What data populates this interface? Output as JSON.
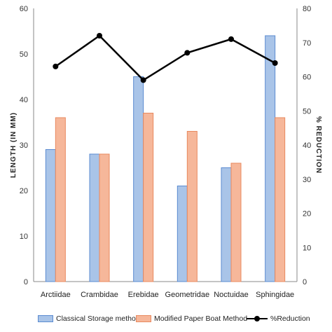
{
  "chart_data": {
    "type": "bar",
    "categories": [
      "Arctiidae",
      "Crambidae",
      "Erebidae",
      "Geometridae",
      "Noctuidae",
      "Sphingidae"
    ],
    "series": [
      {
        "name": "Classical Storage method",
        "type": "bar",
        "axis": "left",
        "values": [
          29,
          28,
          45,
          21,
          25,
          54
        ],
        "fill": "#a9c4e8",
        "stroke": "#5b8bd0"
      },
      {
        "name": "Modified Paper Boat Method",
        "type": "bar",
        "axis": "left",
        "values": [
          36,
          28,
          37,
          33,
          26,
          36
        ],
        "fill": "#f6b79a",
        "stroke": "#e8895f"
      },
      {
        "name": "%Reduction",
        "type": "line",
        "axis": "right",
        "values": [
          63,
          72,
          59,
          67,
          71,
          64
        ],
        "color": "#000000"
      }
    ],
    "ylabel": "LENGTH (IN MM)",
    "y2label": "% REDUCTION",
    "ylim": [
      0,
      60
    ],
    "y2lim": [
      0,
      80
    ],
    "yticks": [
      0,
      10,
      20,
      30,
      40,
      50,
      60
    ],
    "y2ticks": [
      0,
      10,
      20,
      30,
      40,
      50,
      60,
      70,
      80
    ],
    "grid": false,
    "legend_position": "bottom"
  },
  "legend": {
    "bar1_label": "Classical Storage method",
    "bar2_label": "Modified Paper Boat Method",
    "line_label": "%Reduction"
  }
}
